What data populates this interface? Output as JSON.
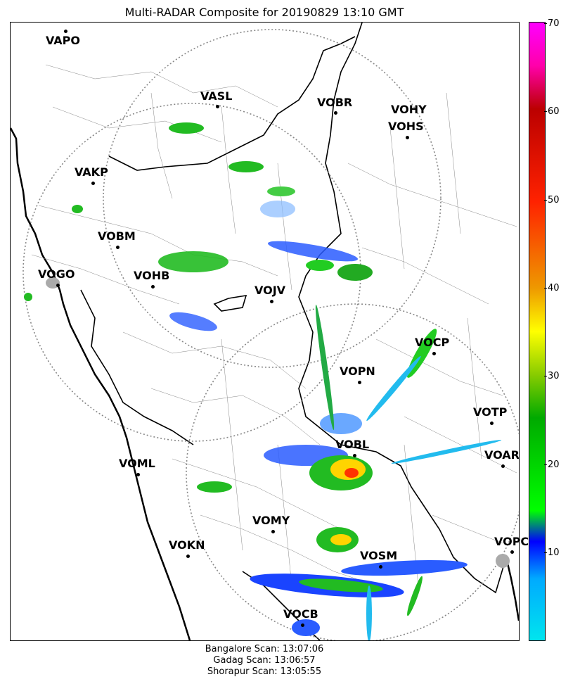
{
  "title": "Multi-RADAR Composite for 20190829 13:10 GMT",
  "colorbar": {
    "ticks": [
      "70",
      "60",
      "50",
      "40",
      "30",
      "20",
      "10"
    ],
    "range": [
      0,
      70
    ]
  },
  "footer": [
    "Bangalore Scan: 13:07:06",
    "Gadag Scan: 13:06:57",
    "Shorapur Scan: 13:05:55"
  ],
  "stations": [
    {
      "name": "VAPO"
    },
    {
      "name": "VASL"
    },
    {
      "name": "VOBR"
    },
    {
      "name": "VOHY"
    },
    {
      "name": "VOHS"
    },
    {
      "name": "VAKP"
    },
    {
      "name": "VOBM"
    },
    {
      "name": "VOGO"
    },
    {
      "name": "VOHB"
    },
    {
      "name": "VOJV"
    },
    {
      "name": "VOCP"
    },
    {
      "name": "VOPN"
    },
    {
      "name": "VOTP"
    },
    {
      "name": "VOBL"
    },
    {
      "name": "VOAR"
    },
    {
      "name": "VOML"
    },
    {
      "name": "VOMY"
    },
    {
      "name": "VOKN"
    },
    {
      "name": "VOSM"
    },
    {
      "name": "VOPC"
    },
    {
      "name": "VOCB"
    }
  ]
}
